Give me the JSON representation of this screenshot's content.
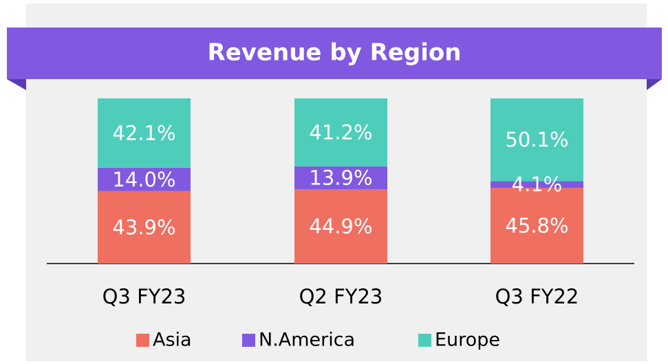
{
  "chart_data": {
    "type": "stacked_bar",
    "title": "Revenue by Region",
    "categories": [
      "Q3 FY23",
      "Q2 FY23",
      "Q3 FY22"
    ],
    "series": [
      {
        "name": "Asia",
        "color": "#ef6f61",
        "values": [
          43.9,
          44.9,
          45.8
        ],
        "value_labels": [
          "43.9%",
          "44.9%",
          "45.8%"
        ]
      },
      {
        "name": "N.America",
        "color": "#8158e0",
        "values": [
          14.0,
          13.9,
          4.1
        ],
        "value_labels": [
          "14.0%",
          "13.9%",
          "4.1%"
        ]
      },
      {
        "name": "Europe",
        "color": "#4ecdbb",
        "values": [
          42.1,
          41.2,
          50.1
        ],
        "value_labels": [
          "42.1%",
          "41.2%",
          "50.1%"
        ]
      }
    ],
    "ylim": [
      0,
      100
    ]
  }
}
